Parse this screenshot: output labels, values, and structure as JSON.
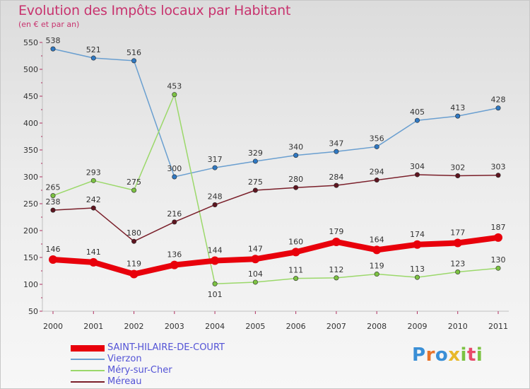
{
  "header": {
    "title": "Evolution des Impôts locaux par Habitant",
    "subtitle": "(en € et par an)"
  },
  "logo": {
    "text": "Proxiti"
  },
  "chart_data": {
    "type": "line",
    "title": "Evolution des Impôts locaux par Habitant",
    "subtitle": "(en € et par an)",
    "xlabel": "",
    "ylabel": "",
    "ylim": [
      50,
      550
    ],
    "yticks": [
      50,
      100,
      150,
      200,
      250,
      300,
      350,
      400,
      450,
      500,
      550
    ],
    "x": [
      "2000",
      "2001",
      "2002",
      "2003",
      "2004",
      "2005",
      "2006",
      "2007",
      "2008",
      "2009",
      "2010",
      "2011"
    ],
    "grid": false,
    "legend_position": "bottom-left",
    "series": [
      {
        "name": "SAINT-HILAIRE-DE-COURT",
        "color": "#e8000b",
        "marker_color": "#e8000b",
        "values": [
          146,
          141,
          119,
          136,
          144,
          147,
          160,
          179,
          164,
          174,
          177,
          187
        ],
        "width": "thick",
        "label_pos": [
          "above",
          "above",
          "above",
          "above",
          "above",
          "above",
          "above",
          "above",
          "above",
          "above",
          "above",
          "above"
        ]
      },
      {
        "name": "Vierzon",
        "color": "#6a9fd0",
        "marker_color": "#2f78c2",
        "values": [
          538,
          521,
          516,
          300,
          317,
          329,
          340,
          347,
          356,
          405,
          413,
          428
        ],
        "width": "thin",
        "label_pos": [
          "above",
          "above",
          "above",
          "above",
          "above",
          "above",
          "above",
          "above",
          "above",
          "above",
          "above",
          "above"
        ]
      },
      {
        "name": "Méry-sur-Cher",
        "color": "#9bd86a",
        "marker_color": "#7cc242",
        "values": [
          265,
          293,
          275,
          453,
          101,
          104,
          111,
          112,
          119,
          113,
          123,
          130
        ],
        "width": "thin",
        "label_pos": [
          "above",
          "above",
          "above",
          "above",
          "below",
          "above",
          "above",
          "above",
          "above",
          "above",
          "above",
          "above"
        ]
      },
      {
        "name": "Méreau",
        "color": "#7a1f2a",
        "marker_color": "#5e1520",
        "values": [
          238,
          242,
          180,
          216,
          248,
          275,
          280,
          284,
          294,
          304,
          302,
          303
        ],
        "width": "thin",
        "label_pos": [
          "above",
          "above",
          "above",
          "above",
          "above",
          "above",
          "above",
          "above",
          "above",
          "above",
          "above",
          "above"
        ]
      }
    ]
  }
}
